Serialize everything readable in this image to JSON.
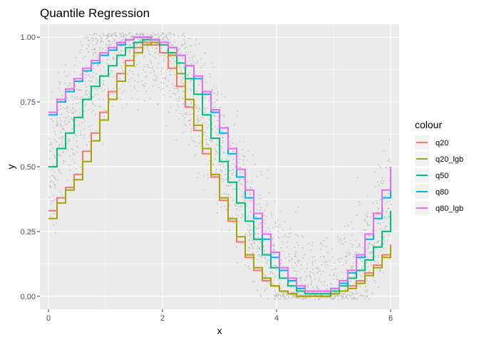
{
  "chart_data": {
    "type": "line",
    "title": "Quantile Regression",
    "xlabel": "x",
    "ylabel": "y",
    "xlim": [
      -0.15,
      6.15
    ],
    "ylim": [
      -0.05,
      1.05
    ],
    "x_ticks": [
      0,
      2,
      4,
      6
    ],
    "y_ticks": [
      0.0,
      0.25,
      0.5,
      0.75,
      1.0
    ],
    "x_tick_labels": [
      "0",
      "2",
      "4",
      "6"
    ],
    "y_tick_labels": [
      "0.00",
      "0.25",
      "0.50",
      "0.75",
      "1.00"
    ],
    "grid": true,
    "step": true,
    "scatter_color": "#bdbdbd",
    "legend": {
      "title": "colour",
      "position": "right"
    },
    "x": [
      0.0,
      0.15,
      0.3,
      0.45,
      0.6,
      0.75,
      0.9,
      1.05,
      1.2,
      1.35,
      1.5,
      1.65,
      1.8,
      1.95,
      2.1,
      2.25,
      2.4,
      2.55,
      2.7,
      2.85,
      3.0,
      3.15,
      3.3,
      3.45,
      3.6,
      3.75,
      3.9,
      4.05,
      4.2,
      4.35,
      4.5,
      4.65,
      4.8,
      4.95,
      5.1,
      5.25,
      5.4,
      5.55,
      5.7,
      5.85,
      6.0
    ],
    "series": [
      {
        "name": "q20",
        "color": "#F8766D",
        "values": [
          0.33,
          0.38,
          0.42,
          0.47,
          0.56,
          0.63,
          0.71,
          0.79,
          0.86,
          0.91,
          0.96,
          0.98,
          0.97,
          0.94,
          0.88,
          0.81,
          0.73,
          0.64,
          0.55,
          0.46,
          0.37,
          0.29,
          0.21,
          0.15,
          0.1,
          0.06,
          0.04,
          0.02,
          0.01,
          0.0,
          0.0,
          0.0,
          0.0,
          0.01,
          0.02,
          0.04,
          0.06,
          0.09,
          0.12,
          0.16,
          0.2
        ]
      },
      {
        "name": "q20_lgb",
        "color": "#A3A500",
        "values": [
          0.3,
          0.36,
          0.41,
          0.45,
          0.52,
          0.6,
          0.68,
          0.76,
          0.83,
          0.89,
          0.94,
          0.97,
          0.98,
          0.98,
          0.93,
          0.86,
          0.76,
          0.66,
          0.57,
          0.47,
          0.38,
          0.3,
          0.23,
          0.16,
          0.11,
          0.07,
          0.04,
          0.02,
          0.01,
          0.0,
          0.0,
          0.0,
          0.0,
          0.01,
          0.02,
          0.03,
          0.05,
          0.08,
          0.11,
          0.15,
          0.19
        ]
      },
      {
        "name": "q50",
        "color": "#00BF7D",
        "values": [
          0.5,
          0.57,
          0.63,
          0.69,
          0.76,
          0.81,
          0.85,
          0.89,
          0.93,
          0.96,
          0.98,
          0.99,
          0.99,
          0.97,
          0.94,
          0.9,
          0.84,
          0.78,
          0.7,
          0.61,
          0.52,
          0.44,
          0.36,
          0.29,
          0.22,
          0.16,
          0.11,
          0.07,
          0.04,
          0.02,
          0.01,
          0.01,
          0.01,
          0.02,
          0.04,
          0.07,
          0.1,
          0.14,
          0.19,
          0.25,
          0.33
        ]
      },
      {
        "name": "q80",
        "color": "#00B0F6",
        "values": [
          0.7,
          0.75,
          0.79,
          0.83,
          0.87,
          0.9,
          0.93,
          0.95,
          0.97,
          0.99,
          1.0,
          1.0,
          0.99,
          0.98,
          0.96,
          0.93,
          0.89,
          0.84,
          0.78,
          0.71,
          0.63,
          0.55,
          0.46,
          0.38,
          0.3,
          0.22,
          0.15,
          0.1,
          0.06,
          0.03,
          0.02,
          0.02,
          0.02,
          0.03,
          0.05,
          0.09,
          0.15,
          0.22,
          0.3,
          0.38,
          0.48
        ]
      },
      {
        "name": "q80_lgb",
        "color": "#E76BF3",
        "values": [
          0.71,
          0.76,
          0.8,
          0.84,
          0.88,
          0.91,
          0.94,
          0.96,
          0.98,
          0.99,
          1.0,
          1.0,
          0.99,
          0.98,
          0.96,
          0.93,
          0.89,
          0.85,
          0.79,
          0.72,
          0.65,
          0.57,
          0.49,
          0.41,
          0.32,
          0.24,
          0.17,
          0.11,
          0.07,
          0.04,
          0.02,
          0.02,
          0.02,
          0.03,
          0.06,
          0.1,
          0.16,
          0.24,
          0.32,
          0.41,
          0.5
        ]
      }
    ]
  }
}
